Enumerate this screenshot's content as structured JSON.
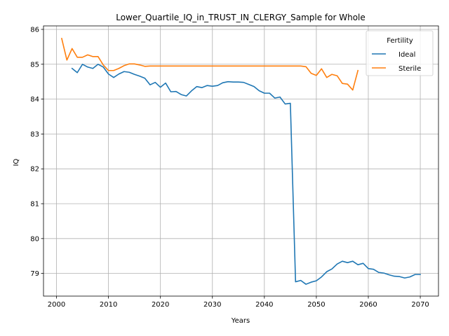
{
  "chart_data": {
    "type": "line",
    "title": "Lower_Quartile_IQ_in_TRUST_IN_CLERGY_Sample for Whole",
    "xlabel": "Years",
    "ylabel": "IQ",
    "xlim": [
      1997.5,
      2073.5
    ],
    "ylim": [
      78.35,
      86.1
    ],
    "xticks": [
      2000,
      2010,
      2020,
      2030,
      2040,
      2050,
      2060,
      2070
    ],
    "yticks": [
      79,
      80,
      81,
      82,
      83,
      84,
      85,
      86
    ],
    "grid": true,
    "legend": {
      "title": "Fertility",
      "position": "top-right"
    },
    "series": [
      {
        "name": "Ideal",
        "color": "#1f77b4",
        "x": [
          2003,
          2004,
          2005,
          2006,
          2007,
          2008,
          2009,
          2010,
          2011,
          2012,
          2013,
          2014,
          2015,
          2016,
          2017,
          2018,
          2019,
          2020,
          2021,
          2022,
          2023,
          2024,
          2025,
          2026,
          2027,
          2028,
          2029,
          2030,
          2031,
          2032,
          2033,
          2034,
          2035,
          2036,
          2037,
          2038,
          2039,
          2040,
          2041,
          2042,
          2043,
          2044,
          2045,
          2046,
          2047,
          2048,
          2049,
          2050,
          2051,
          2052,
          2053,
          2054,
          2055,
          2056,
          2057,
          2058,
          2059,
          2060,
          2061,
          2062,
          2063,
          2064,
          2065,
          2066,
          2067,
          2068,
          2069,
          2070
        ],
        "values": [
          84.88,
          84.76,
          85.0,
          84.92,
          84.88,
          85.0,
          84.92,
          84.72,
          84.62,
          84.72,
          84.79,
          84.77,
          84.71,
          84.66,
          84.6,
          84.41,
          84.48,
          84.34,
          84.46,
          84.21,
          84.22,
          84.13,
          84.09,
          84.24,
          84.36,
          84.33,
          84.39,
          84.37,
          84.39,
          84.47,
          84.5,
          84.49,
          84.49,
          84.48,
          84.42,
          84.36,
          84.24,
          84.17,
          84.17,
          84.03,
          84.06,
          83.86,
          83.88,
          78.76,
          78.8,
          78.69,
          78.75,
          78.79,
          78.9,
          79.05,
          79.13,
          79.27,
          79.35,
          79.31,
          79.35,
          79.25,
          79.29,
          79.14,
          79.12,
          79.03,
          79.01,
          78.96,
          78.92,
          78.91,
          78.87,
          78.9,
          78.97,
          78.97
        ]
      },
      {
        "name": "Sterile",
        "color": "#ff7f0e",
        "x": [
          2001,
          2002,
          2003,
          2004,
          2005,
          2006,
          2007,
          2008,
          2009,
          2010,
          2011,
          2012,
          2013,
          2014,
          2015,
          2016,
          2017,
          2018,
          2019,
          2020,
          2021,
          2022,
          2023,
          2024,
          2025,
          2026,
          2027,
          2028,
          2029,
          2030,
          2031,
          2032,
          2033,
          2034,
          2035,
          2036,
          2037,
          2038,
          2039,
          2040,
          2041,
          2042,
          2043,
          2044,
          2045,
          2046,
          2047,
          2048,
          2049,
          2050,
          2051,
          2052,
          2053,
          2054,
          2055,
          2056,
          2057,
          2058
        ],
        "values": [
          85.74,
          85.12,
          85.45,
          85.2,
          85.2,
          85.27,
          85.22,
          85.22,
          84.98,
          84.82,
          84.82,
          84.88,
          84.96,
          85.01,
          85.01,
          84.98,
          84.94,
          84.95,
          84.95,
          84.95,
          84.95,
          84.95,
          84.95,
          84.95,
          84.95,
          84.95,
          84.95,
          84.95,
          84.95,
          84.95,
          84.95,
          84.95,
          84.95,
          84.95,
          84.95,
          84.95,
          84.95,
          84.95,
          84.95,
          84.95,
          84.95,
          84.95,
          84.95,
          84.95,
          84.95,
          84.95,
          84.95,
          84.93,
          84.74,
          84.68,
          84.87,
          84.62,
          84.71,
          84.67,
          84.45,
          84.43,
          84.26,
          84.82
        ]
      }
    ]
  }
}
